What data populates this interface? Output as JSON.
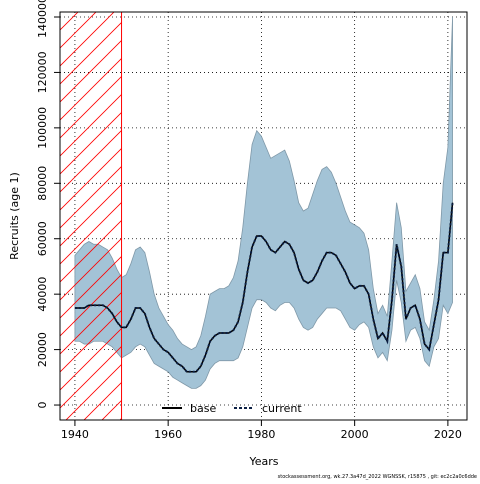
{
  "chart_data": {
    "type": "line",
    "xlabel": "Years",
    "ylabel": "Recruits (age 1)",
    "footer": "stockassessment.org, wk.27.3a47d_2022 WGNSSK, r15875 , git: ec2c2a0c6dde",
    "x": [
      1940,
      1941,
      1942,
      1943,
      1944,
      1945,
      1946,
      1947,
      1948,
      1949,
      1950,
      1951,
      1952,
      1953,
      1954,
      1955,
      1956,
      1957,
      1958,
      1959,
      1960,
      1961,
      1962,
      1963,
      1964,
      1965,
      1966,
      1967,
      1968,
      1969,
      1970,
      1971,
      1972,
      1973,
      1974,
      1975,
      1976,
      1977,
      1978,
      1979,
      1980,
      1981,
      1982,
      1983,
      1984,
      1985,
      1986,
      1987,
      1988,
      1989,
      1990,
      1991,
      1992,
      1993,
      1994,
      1995,
      1996,
      1997,
      1998,
      1999,
      2000,
      2001,
      2002,
      2003,
      2004,
      2005,
      2006,
      2007,
      2008,
      2009,
      2010,
      2011,
      2012,
      2013,
      2014,
      2015,
      2016,
      2017,
      2018,
      2019,
      2020,
      2021
    ],
    "series": [
      {
        "name": "base",
        "color": "#000000",
        "dash": "solid",
        "values": [
          35000,
          35000,
          35000,
          36000,
          36000,
          36000,
          36000,
          35000,
          33000,
          30000,
          28000,
          28000,
          31000,
          35000,
          35000,
          33000,
          28000,
          24000,
          22000,
          20000,
          19000,
          17000,
          15000,
          14000,
          12000,
          12000,
          12000,
          14000,
          18000,
          23000,
          25000,
          26000,
          26000,
          26000,
          27000,
          30000,
          37000,
          48000,
          57000,
          61000,
          61000,
          59000,
          56000,
          55000,
          57000,
          59000,
          58000,
          55000,
          49000,
          45000,
          44000,
          45000,
          48000,
          52000,
          55000,
          55000,
          54000,
          51000,
          48000,
          44000,
          42000,
          43000,
          43000,
          40000,
          31000,
          24000,
          26000,
          23000,
          38000,
          58000,
          50000,
          31000,
          35000,
          36000,
          31000,
          22000,
          20000,
          29000,
          38000,
          55000,
          55000,
          73000
        ]
      },
      {
        "name": "current",
        "color": "#0b1f44",
        "dash": "dotted",
        "values": [
          35000,
          35000,
          35000,
          36000,
          36000,
          36000,
          36000,
          35000,
          33000,
          30000,
          28000,
          28000,
          31000,
          35000,
          35000,
          33000,
          28000,
          24000,
          22000,
          20000,
          19000,
          17000,
          15000,
          14000,
          12000,
          12000,
          12000,
          14000,
          18000,
          23000,
          25000,
          26000,
          26000,
          26000,
          27000,
          30000,
          37000,
          48000,
          57000,
          61000,
          61000,
          59000,
          56000,
          55000,
          57000,
          59000,
          58000,
          55000,
          49000,
          45000,
          44000,
          45000,
          48000,
          52000,
          55000,
          55000,
          54000,
          51000,
          48000,
          44000,
          42000,
          43000,
          43000,
          40000,
          31000,
          24000,
          26000,
          23000,
          38000,
          58000,
          50000,
          31000,
          35000,
          36000,
          31000,
          22000,
          20000,
          29000,
          38000,
          55000,
          55000,
          73000
        ]
      }
    ],
    "interval": {
      "color": "#a3c3d6",
      "upper": [
        54000,
        56000,
        58000,
        59000,
        58000,
        58000,
        57000,
        56000,
        53000,
        49000,
        46000,
        47000,
        51000,
        56000,
        57000,
        55000,
        48000,
        40000,
        35000,
        32000,
        29000,
        27000,
        24000,
        22000,
        21000,
        20000,
        21000,
        25000,
        32000,
        40000,
        41000,
        42000,
        42000,
        43000,
        46000,
        52000,
        64000,
        80000,
        94000,
        99000,
        97000,
        93000,
        89000,
        90000,
        91000,
        92000,
        88000,
        81000,
        73000,
        70000,
        71000,
        76000,
        81000,
        85000,
        86000,
        84000,
        80000,
        75000,
        70000,
        66000,
        65000,
        64000,
        62000,
        56000,
        42000,
        33000,
        36000,
        32000,
        52000,
        73000,
        64000,
        41000,
        44000,
        47000,
        42000,
        30000,
        27000,
        38000,
        52000,
        80000,
        93000,
        140000
      ],
      "lower": [
        23000,
        23000,
        22000,
        22000,
        23000,
        23000,
        23000,
        22000,
        21000,
        19000,
        17000,
        18000,
        19000,
        21000,
        22000,
        21000,
        18000,
        15000,
        14000,
        13000,
        12000,
        10000,
        9000,
        8000,
        7000,
        6000,
        6000,
        7000,
        9000,
        13000,
        15000,
        16000,
        16000,
        16000,
        16000,
        17000,
        21000,
        28000,
        35000,
        38000,
        38000,
        37000,
        35000,
        34000,
        36000,
        37000,
        37000,
        35000,
        31000,
        28000,
        27000,
        28000,
        31000,
        33000,
        35000,
        35000,
        35000,
        34000,
        31000,
        28000,
        27000,
        29000,
        30000,
        28000,
        21000,
        17000,
        19000,
        16000,
        27000,
        45000,
        37000,
        23000,
        27000,
        28000,
        24000,
        16000,
        14000,
        21000,
        24000,
        36000,
        33000,
        37000
      ]
    },
    "hatch_end": 1950,
    "hatch_color": "#ff0000",
    "xlim": [
      1936.8,
      2024.1
    ],
    "ylim": [
      -5400,
      141800
    ],
    "xticks": [
      1940,
      1960,
      1980,
      2000,
      2020
    ],
    "yticks": [
      0,
      20000,
      40000,
      60000,
      80000,
      100000,
      120000,
      140000
    ],
    "grid": true
  }
}
